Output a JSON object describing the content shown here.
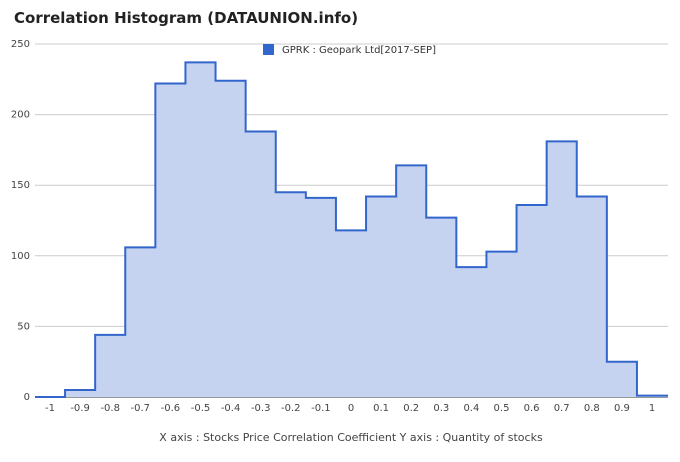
{
  "title": "Correlation Histogram (DATAUNION.info)",
  "legend": {
    "label": "GPRK : Geopark Ltd[2017-SEP]"
  },
  "caption": "X axis : Stocks Price Correlation Coefficient  Y axis : Quantity of stocks",
  "colors": {
    "line": "#3366cc",
    "fill": "#c5d3f1",
    "grid": "#cccccc"
  },
  "chart_data": {
    "type": "area",
    "step": true,
    "grid": true,
    "legend_position": "top",
    "ylim": [
      0,
      250
    ],
    "yticks": [
      0,
      50,
      100,
      150,
      200,
      250
    ],
    "xlim": [
      -1,
      1
    ],
    "xticks": [
      "-1",
      "-0.9",
      "-0.8",
      "-0.7",
      "-0.6",
      "-0.5",
      "-0.4",
      "-0.3",
      "-0.2",
      "-0.1",
      "0",
      "0.1",
      "0.2",
      "0.3",
      "0.4",
      "0.5",
      "0.6",
      "0.7",
      "0.8",
      "0.9",
      "1"
    ],
    "series": [
      {
        "name": "GPRK : Geopark Ltd[2017-SEP]",
        "x": [
          -1,
          -0.9,
          -0.8,
          -0.7,
          -0.6,
          -0.5,
          -0.4,
          -0.3,
          -0.2,
          -0.1,
          0,
          0.1,
          0.2,
          0.3,
          0.4,
          0.5,
          0.6,
          0.7,
          0.8,
          0.9,
          1
        ],
        "values": [
          0,
          5,
          44,
          106,
          222,
          237,
          224,
          188,
          145,
          141,
          118,
          142,
          164,
          127,
          92,
          103,
          136,
          181,
          142,
          25,
          1
        ]
      }
    ]
  }
}
